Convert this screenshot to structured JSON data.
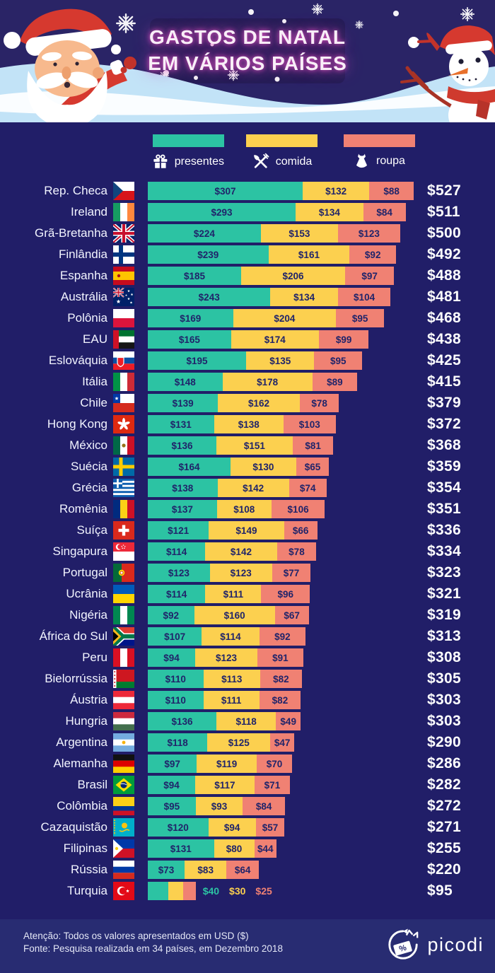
{
  "header": {
    "title_line1": "GASTOS DE NATAL",
    "title_line2": "EM VÁRIOS PAÍSES"
  },
  "legend": {
    "items": [
      {
        "label": "presentes",
        "icon": "gift-icon",
        "color": "#2cc3a3"
      },
      {
        "label": "comida",
        "icon": "utensils-icon",
        "color": "#fcd04f"
      },
      {
        "label": "roupa",
        "icon": "dress-icon",
        "color": "#f08173"
      }
    ]
  },
  "chart_data": {
    "type": "bar",
    "orientation": "horizontal",
    "stacked": true,
    "title": "Gastos de Natal em vários países",
    "unit": "USD ($)",
    "legend_position": "top",
    "series_names": [
      "presentes",
      "comida",
      "roupa"
    ],
    "series_colors": [
      "#2cc3a3",
      "#fcd04f",
      "#f08173"
    ],
    "rows": [
      {
        "country": "Rep. Checa",
        "flag": "cz",
        "values": [
          307,
          132,
          88
        ],
        "total": 527
      },
      {
        "country": "Ireland",
        "flag": "ie",
        "values": [
          293,
          134,
          84
        ],
        "total": 511
      },
      {
        "country": "Grã-Bretanha",
        "flag": "gb",
        "values": [
          224,
          153,
          123
        ],
        "total": 500
      },
      {
        "country": "Finlândia",
        "flag": "fi",
        "values": [
          239,
          161,
          92
        ],
        "total": 492
      },
      {
        "country": "Espanha",
        "flag": "es",
        "values": [
          185,
          206,
          97
        ],
        "total": 488
      },
      {
        "country": "Austrália",
        "flag": "au",
        "values": [
          243,
          134,
          104
        ],
        "total": 481
      },
      {
        "country": "Polônia",
        "flag": "pl",
        "values": [
          169,
          204,
          95
        ],
        "total": 468
      },
      {
        "country": "EAU",
        "flag": "ae",
        "values": [
          165,
          174,
          99
        ],
        "total": 438
      },
      {
        "country": "Eslováquia",
        "flag": "sk",
        "values": [
          195,
          135,
          95
        ],
        "total": 425
      },
      {
        "country": "Itália",
        "flag": "it",
        "values": [
          148,
          178,
          89
        ],
        "total": 415
      },
      {
        "country": "Chile",
        "flag": "cl",
        "values": [
          139,
          162,
          78
        ],
        "total": 379
      },
      {
        "country": "Hong Kong",
        "flag": "hk",
        "values": [
          131,
          138,
          103
        ],
        "total": 372
      },
      {
        "country": "México",
        "flag": "mx",
        "values": [
          136,
          151,
          81
        ],
        "total": 368
      },
      {
        "country": "Suécia",
        "flag": "se",
        "values": [
          164,
          130,
          65
        ],
        "total": 359
      },
      {
        "country": "Grécia",
        "flag": "gr",
        "values": [
          138,
          142,
          74
        ],
        "total": 354
      },
      {
        "country": "Romênia",
        "flag": "ro",
        "values": [
          137,
          108,
          106
        ],
        "total": 351
      },
      {
        "country": "Suíça",
        "flag": "ch",
        "values": [
          121,
          149,
          66
        ],
        "total": 336
      },
      {
        "country": "Singapura",
        "flag": "sg",
        "values": [
          114,
          142,
          78
        ],
        "total": 334
      },
      {
        "country": "Portugal",
        "flag": "pt",
        "values": [
          123,
          123,
          77
        ],
        "total": 323
      },
      {
        "country": "Ucrânia",
        "flag": "ua",
        "values": [
          114,
          111,
          96
        ],
        "total": 321
      },
      {
        "country": "Nigéria",
        "flag": "ng",
        "values": [
          92,
          160,
          67
        ],
        "total": 319
      },
      {
        "country": "África do Sul",
        "flag": "za",
        "values": [
          107,
          114,
          92
        ],
        "total": 313
      },
      {
        "country": "Peru",
        "flag": "pe",
        "values": [
          94,
          123,
          91
        ],
        "total": 308
      },
      {
        "country": "Bielorrússia",
        "flag": "by",
        "values": [
          110,
          113,
          82
        ],
        "total": 305
      },
      {
        "country": "Áustria",
        "flag": "at",
        "values": [
          110,
          111,
          82
        ],
        "total": 303
      },
      {
        "country": "Hungria",
        "flag": "hu",
        "values": [
          136,
          118,
          49
        ],
        "total": 303
      },
      {
        "country": "Argentina",
        "flag": "ar",
        "values": [
          118,
          125,
          47
        ],
        "total": 290
      },
      {
        "country": "Alemanha",
        "flag": "de",
        "values": [
          97,
          119,
          70
        ],
        "total": 286
      },
      {
        "country": "Brasil",
        "flag": "br",
        "values": [
          94,
          117,
          71
        ],
        "total": 282
      },
      {
        "country": "Colômbia",
        "flag": "co",
        "values": [
          95,
          93,
          84
        ],
        "total": 272
      },
      {
        "country": "Cazaquistão",
        "flag": "kz",
        "values": [
          120,
          94,
          57
        ],
        "total": 271
      },
      {
        "country": "Filipinas",
        "flag": "ph",
        "values": [
          131,
          80,
          44
        ],
        "total": 255
      },
      {
        "country": "Rússia",
        "flag": "ru",
        "values": [
          73,
          83,
          64
        ],
        "total": 220
      },
      {
        "country": "Turquia",
        "flag": "tr",
        "values": [
          40,
          30,
          25
        ],
        "total": 95,
        "labels_outside": true
      }
    ]
  },
  "footer": {
    "note_line1": "Atenção: Todos os valores apresentados em USD ($)",
    "note_line2": "Fonte: Pesquisa realizada em 34 países, em Dezembro 2018",
    "brand": "picodi"
  }
}
